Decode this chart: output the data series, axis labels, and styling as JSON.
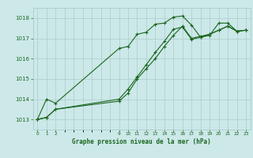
{
  "title": "Graphe pression niveau de la mer (hPa)",
  "bg_color": "#cce8e8",
  "grid_color": "#aacccc",
  "line_color": "#1a6620",
  "ylim": [
    1012.5,
    1018.5
  ],
  "yticks": [
    1013,
    1014,
    1015,
    1016,
    1017,
    1018
  ],
  "xlim": [
    -0.5,
    23.5
  ],
  "x_tick_positions": [
    0,
    1,
    2,
    9,
    10,
    11,
    12,
    13,
    14,
    15,
    16,
    17,
    18,
    19,
    20,
    21,
    22,
    23
  ],
  "x_tick_labels": [
    "0",
    "1",
    "2",
    "9",
    "10",
    "11",
    "12",
    "13",
    "14",
    "15",
    "16",
    "17",
    "18",
    "19",
    "20",
    "21",
    "22",
    "23"
  ],
  "line1_x": [
    0,
    1,
    2,
    9,
    10,
    11,
    12,
    13,
    14,
    15,
    16,
    17,
    18,
    19,
    20,
    21,
    22,
    23
  ],
  "line1_y": [
    1013.0,
    1014.0,
    1013.8,
    1016.5,
    1016.6,
    1017.2,
    1017.3,
    1017.7,
    1017.75,
    1018.05,
    1018.1,
    1017.65,
    1017.05,
    1017.15,
    1017.75,
    1017.75,
    1017.35,
    1017.4
  ],
  "line2_x": [
    0,
    1,
    2,
    9,
    10,
    11,
    12,
    13,
    14,
    15,
    16,
    17,
    18,
    19,
    20,
    21,
    22,
    23
  ],
  "line2_y": [
    1013.0,
    1013.1,
    1013.5,
    1013.9,
    1014.3,
    1015.0,
    1015.5,
    1016.0,
    1016.6,
    1017.15,
    1017.6,
    1017.0,
    1017.1,
    1017.2,
    1017.4,
    1017.6,
    1017.35,
    1017.4
  ],
  "line3_x": [
    0,
    1,
    2,
    9,
    10,
    11,
    12,
    13,
    14,
    15,
    16,
    17,
    18,
    19,
    20,
    21,
    22,
    23
  ],
  "line3_y": [
    1013.0,
    1013.1,
    1013.5,
    1014.0,
    1014.5,
    1015.1,
    1015.7,
    1016.3,
    1016.85,
    1017.45,
    1017.55,
    1016.95,
    1017.05,
    1017.2,
    1017.4,
    1017.6,
    1017.35,
    1017.4
  ]
}
